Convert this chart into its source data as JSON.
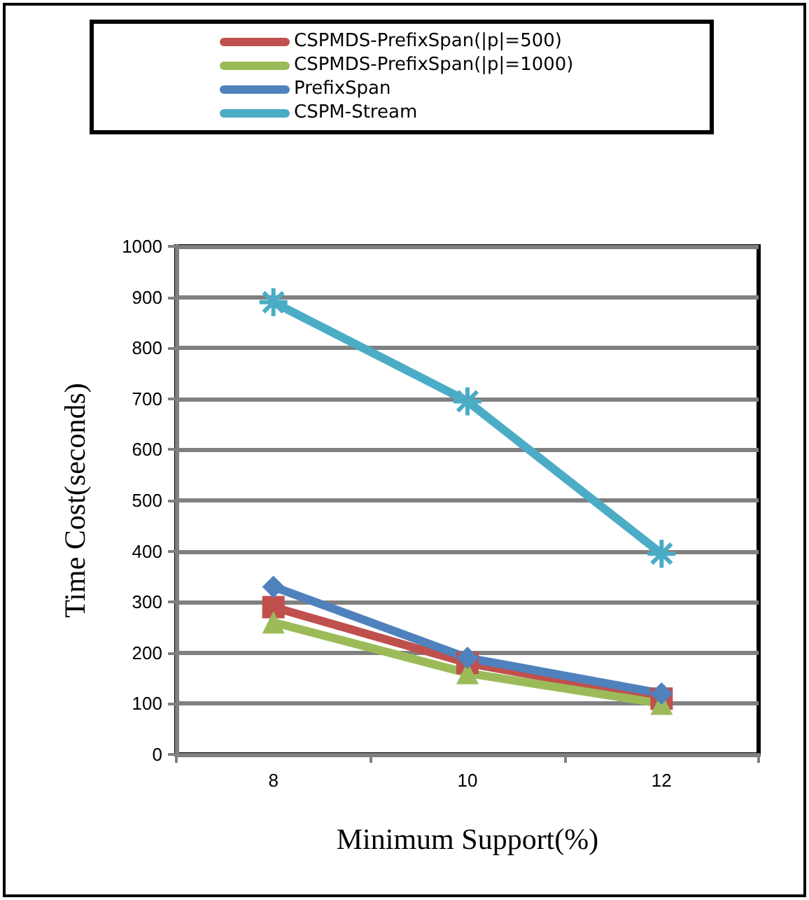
{
  "chart_data": {
    "type": "line",
    "xlabel": "Minimum Support(%)",
    "ylabel": "Time Cost(seconds)",
    "categories": [
      "8",
      "10",
      "12"
    ],
    "series": [
      {
        "name": "CSPMDS-PrefixSpan(|p|=500)",
        "color": "#c0504d",
        "marker": "square",
        "values": [
          290,
          180,
          110
        ]
      },
      {
        "name": "CSPMDS-PrefixSpan(|p|=1000)",
        "color": "#9bbb59",
        "marker": "triangle",
        "values": [
          260,
          160,
          100
        ]
      },
      {
        "name": "PrefixSpan",
        "color": "#4f81bd",
        "marker": "diamond",
        "values": [
          330,
          190,
          120
        ]
      },
      {
        "name": "CSPM-Stream",
        "color": "#4bacc6",
        "marker": "cross",
        "values": [
          890,
          695,
          395
        ]
      }
    ],
    "ylim": [
      0,
      1000
    ],
    "yticks": [
      0,
      100,
      200,
      300,
      400,
      500,
      600,
      700,
      800,
      900,
      1000
    ],
    "grid": "y",
    "legend": "top",
    "line_style": "solid"
  }
}
